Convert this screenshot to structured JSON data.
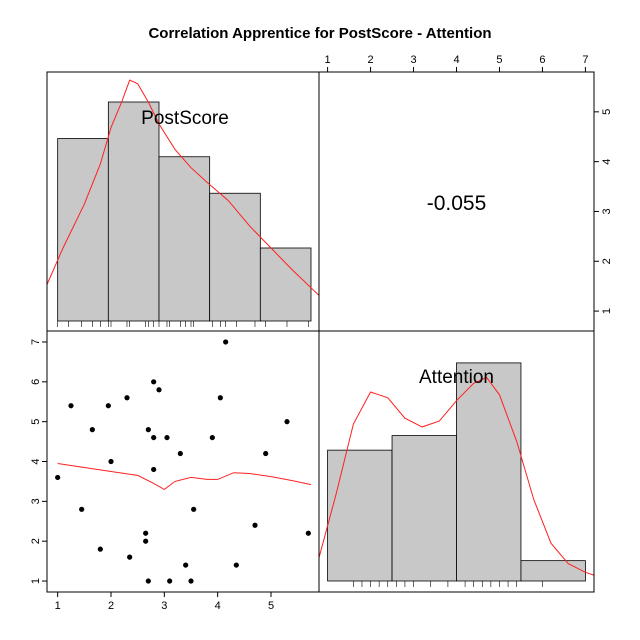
{
  "chart_data": {
    "type": "scatter",
    "title": "Correlation Apprentice for PostScore - Attention",
    "variables": [
      "PostScore",
      "Attention"
    ],
    "correlation": "-0.055",
    "colors": {
      "bar_fill": "#c8c8c8",
      "density": "#ff2020",
      "loess": "#ff2020",
      "point": "#000000",
      "frame": "#000000"
    },
    "axes": {
      "postscore_ticks": [
        "1",
        "2",
        "3",
        "4",
        "5"
      ],
      "attention_ticks": [
        "1",
        "2",
        "3",
        "4",
        "5",
        "6",
        "7"
      ],
      "postscore_range": [
        0.8,
        5.9
      ],
      "attention_range": [
        0.8,
        7.2
      ]
    },
    "postscore_hist": {
      "bins": [
        [
          1.0,
          1.95
        ],
        [
          1.95,
          2.9
        ],
        [
          2.9,
          3.85
        ],
        [
          3.85,
          4.8
        ],
        [
          4.8,
          5.75
        ]
      ],
      "counts": [
        5,
        6,
        4.5,
        3.5,
        2
      ],
      "density": [
        [
          0.8,
          1.0
        ],
        [
          1.1,
          2.0
        ],
        [
          1.5,
          3.2
        ],
        [
          1.8,
          4.3
        ],
        [
          2.0,
          5.3
        ],
        [
          2.2,
          6.0
        ],
        [
          2.35,
          6.6
        ],
        [
          2.5,
          6.5
        ],
        [
          2.7,
          6.0
        ],
        [
          2.9,
          5.4
        ],
        [
          3.2,
          4.7
        ],
        [
          3.5,
          4.2
        ],
        [
          3.8,
          3.8
        ],
        [
          4.2,
          3.3
        ],
        [
          4.6,
          2.6
        ],
        [
          5.0,
          2.0
        ],
        [
          5.4,
          1.4
        ],
        [
          5.9,
          0.7
        ]
      ]
    },
    "attention_hist": {
      "bins": [
        [
          1.0,
          2.5
        ],
        [
          2.5,
          4.0
        ],
        [
          4.0,
          5.5
        ],
        [
          5.5,
          7.0
        ]
      ],
      "counts": [
        4.5,
        5,
        7.5,
        0.7
      ],
      "density": [
        [
          0.8,
          0.8
        ],
        [
          1.2,
          3.0
        ],
        [
          1.6,
          5.4
        ],
        [
          2.0,
          6.5
        ],
        [
          2.4,
          6.3
        ],
        [
          2.8,
          5.6
        ],
        [
          3.2,
          5.3
        ],
        [
          3.6,
          5.5
        ],
        [
          4.0,
          6.2
        ],
        [
          4.4,
          6.8
        ],
        [
          4.7,
          7.0
        ],
        [
          5.0,
          6.4
        ],
        [
          5.4,
          4.8
        ],
        [
          5.8,
          2.8
        ],
        [
          6.2,
          1.3
        ],
        [
          6.6,
          0.6
        ],
        [
          7.0,
          0.3
        ],
        [
          7.3,
          0.15
        ]
      ]
    },
    "scatter_points": [
      {
        "x": 1.0,
        "y": 3.6
      },
      {
        "x": 1.25,
        "y": 5.4
      },
      {
        "x": 1.45,
        "y": 2.8
      },
      {
        "x": 1.65,
        "y": 4.8
      },
      {
        "x": 1.8,
        "y": 1.8
      },
      {
        "x": 1.95,
        "y": 5.4
      },
      {
        "x": 2.0,
        "y": 4.0
      },
      {
        "x": 2.3,
        "y": 5.6
      },
      {
        "x": 2.35,
        "y": 1.6
      },
      {
        "x": 2.65,
        "y": 2.0
      },
      {
        "x": 2.65,
        "y": 2.2
      },
      {
        "x": 2.7,
        "y": 4.8
      },
      {
        "x": 2.7,
        "y": 1.0
      },
      {
        "x": 2.8,
        "y": 6.0
      },
      {
        "x": 2.8,
        "y": 4.6
      },
      {
        "x": 2.8,
        "y": 3.8
      },
      {
        "x": 2.9,
        "y": 5.8
      },
      {
        "x": 3.05,
        "y": 4.6
      },
      {
        "x": 3.1,
        "y": 1.0
      },
      {
        "x": 3.3,
        "y": 4.2
      },
      {
        "x": 3.4,
        "y": 1.4
      },
      {
        "x": 3.5,
        "y": 1.0
      },
      {
        "x": 3.55,
        "y": 2.8
      },
      {
        "x": 3.9,
        "y": 4.6
      },
      {
        "x": 4.05,
        "y": 5.6
      },
      {
        "x": 4.15,
        "y": 7.0
      },
      {
        "x": 4.35,
        "y": 1.4
      },
      {
        "x": 4.7,
        "y": 2.4
      },
      {
        "x": 4.9,
        "y": 4.2
      },
      {
        "x": 5.3,
        "y": 5.0
      },
      {
        "x": 5.7,
        "y": 2.2
      }
    ],
    "loess": [
      [
        1.0,
        3.95
      ],
      [
        1.5,
        3.85
      ],
      [
        2.0,
        3.75
      ],
      [
        2.5,
        3.65
      ],
      [
        2.8,
        3.45
      ],
      [
        3.0,
        3.3
      ],
      [
        3.2,
        3.5
      ],
      [
        3.5,
        3.6
      ],
      [
        3.8,
        3.55
      ],
      [
        4.0,
        3.55
      ],
      [
        4.3,
        3.72
      ],
      [
        4.6,
        3.7
      ],
      [
        5.0,
        3.62
      ],
      [
        5.4,
        3.52
      ],
      [
        5.75,
        3.42
      ]
    ],
    "rug_postscore": [
      1.0,
      1.2,
      1.45,
      1.65,
      1.8,
      1.95,
      2.0,
      2.3,
      2.35,
      2.65,
      2.7,
      2.8,
      2.9,
      3.05,
      3.1,
      3.3,
      3.4,
      3.5,
      3.55,
      3.9,
      4.05,
      4.15,
      4.35,
      4.7,
      4.9,
      5.3,
      5.7
    ],
    "rug_attention": [
      1.6,
      1.8,
      2.0,
      2.2,
      2.4,
      2.6,
      2.8,
      3.0,
      3.4,
      3.8,
      4.2,
      4.4,
      4.6,
      4.8,
      5.0,
      5.2,
      5.4,
      6.0
    ]
  }
}
